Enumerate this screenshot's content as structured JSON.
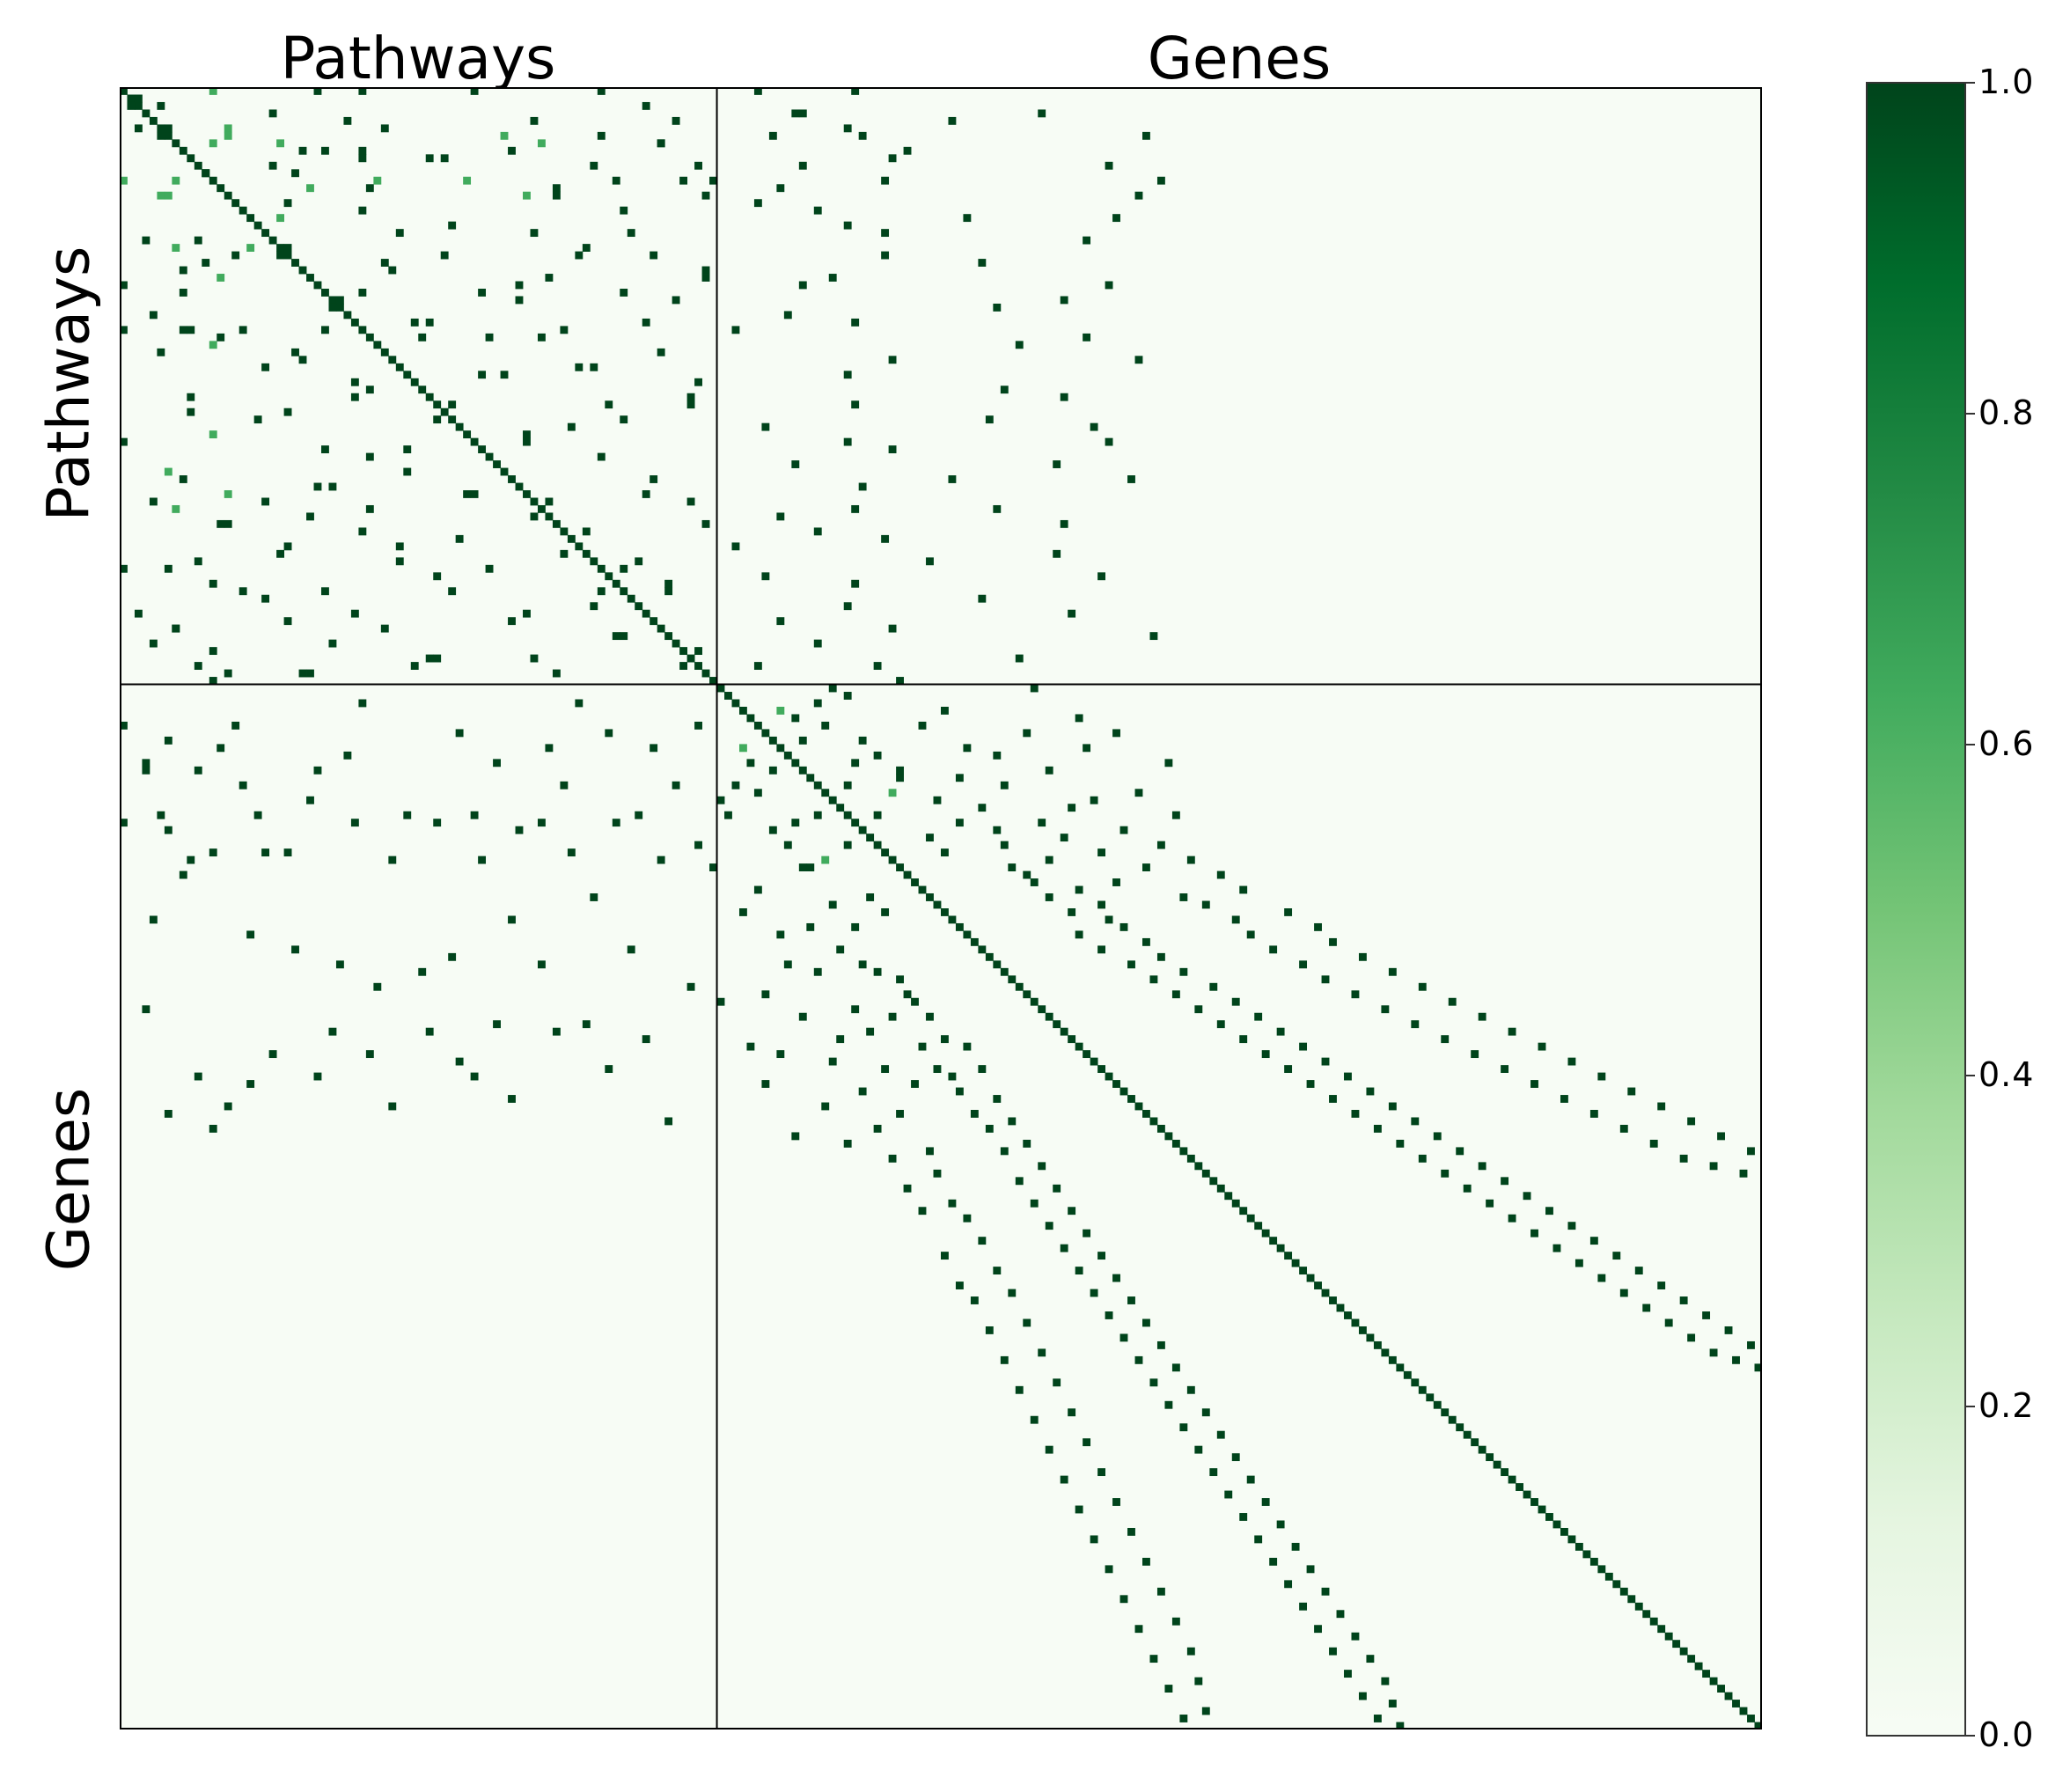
{
  "titles": {
    "pathways": "Pathways",
    "genes": "Genes"
  },
  "row_labels": {
    "pathways": "Pathways",
    "genes": "Genes"
  },
  "colorbar": {
    "ticks": [
      "1.0",
      "0.8",
      "0.6",
      "0.4",
      "0.2",
      "0.0"
    ],
    "colors": [
      "#f7fcf5",
      "#e5f5e0",
      "#c7e9c0",
      "#a1d99b",
      "#74c476",
      "#41ab5d",
      "#238b45",
      "#006d2c",
      "#00441b"
    ]
  },
  "chart_data": {
    "type": "heatmap",
    "description_of_axes": "symmetric adjacency matrix over pathways followed by genes",
    "block_labels": [
      "Pathways",
      "Genes"
    ],
    "n_pathways": 80,
    "n_genes": 140,
    "value_range": [
      0.0,
      1.0
    ],
    "colormap": "Greens",
    "diagonal_value": 1.0,
    "background_value": 0.0,
    "entries": [
      [
        0,
        12,
        0.6
      ],
      [
        0,
        26,
        1.0
      ],
      [
        0,
        32,
        1.0
      ],
      [
        0,
        47,
        1.0
      ],
      [
        0,
        64,
        1.0
      ],
      [
        0,
        85,
        1.0
      ],
      [
        0,
        98,
        1.0
      ],
      [
        1,
        2,
        1.0
      ],
      [
        2,
        5,
        1.0
      ],
      [
        2,
        70,
        1.0
      ],
      [
        3,
        90,
        1.0
      ],
      [
        3,
        91,
        1.0
      ],
      [
        3,
        123,
        1.0
      ],
      [
        4,
        74,
        1.0
      ],
      [
        4,
        111,
        1.0
      ],
      [
        5,
        6,
        1.0
      ],
      [
        5,
        14,
        0.6
      ],
      [
        5,
        35,
        1.0
      ],
      [
        5,
        97,
        1.0
      ],
      [
        6,
        87,
        1.0
      ],
      [
        6,
        99,
        1.0
      ],
      [
        6,
        137,
        1.0
      ],
      [
        7,
        12,
        0.6
      ],
      [
        7,
        21,
        0.6
      ],
      [
        7,
        56,
        0.6
      ],
      [
        7,
        72,
        1.0
      ],
      [
        8,
        24,
        1.0
      ],
      [
        8,
        27,
        1.0
      ],
      [
        8,
        52,
        1.0
      ],
      [
        8,
        105,
        1.0
      ],
      [
        9,
        32,
        1.0
      ],
      [
        9,
        41,
        1.0
      ],
      [
        9,
        103,
        1.0
      ],
      [
        10,
        63,
        1.0
      ],
      [
        10,
        77,
        1.0
      ],
      [
        10,
        91,
        1.0
      ],
      [
        10,
        132,
        1.0
      ],
      [
        11,
        11,
        1.0
      ],
      [
        11,
        23,
        1.0
      ],
      [
        12,
        102,
        1.0
      ],
      [
        12,
        139,
        1.0
      ],
      [
        13,
        33,
        1.0
      ],
      [
        13,
        58,
        1.0
      ],
      [
        13,
        88,
        1.0
      ],
      [
        14,
        6,
        0.6
      ],
      [
        14,
        54,
        0.6
      ],
      [
        14,
        78,
        1.0
      ],
      [
        14,
        136,
        1.0
      ],
      [
        15,
        22,
        1.0
      ],
      [
        15,
        85,
        1.0
      ],
      [
        16,
        32,
        1.0
      ],
      [
        16,
        67,
        1.0
      ],
      [
        16,
        93,
        1.0
      ],
      [
        17,
        113,
        1.0
      ],
      [
        17,
        133,
        1.0
      ],
      [
        18,
        44,
        1.0
      ],
      [
        18,
        97,
        1.0
      ],
      [
        19,
        55,
        1.0
      ],
      [
        19,
        102,
        1.0
      ],
      [
        20,
        3,
        1.0
      ],
      [
        20,
        10,
        1.0
      ],
      [
        20,
        129,
        1.0
      ],
      [
        21,
        17,
        0.6
      ],
      [
        21,
        22,
        1.0
      ],
      [
        21,
        62,
        1.0
      ],
      [
        22,
        71,
        1.0
      ],
      [
        22,
        102,
        1.0
      ],
      [
        23,
        35,
        1.0
      ],
      [
        23,
        115,
        1.0
      ],
      [
        24,
        36,
        1.0
      ],
      [
        24,
        78,
        1.0
      ],
      [
        25,
        13,
        0.6
      ],
      [
        25,
        57,
        1.0
      ],
      [
        25,
        95,
        1.0
      ],
      [
        26,
        91,
        1.0
      ],
      [
        26,
        132,
        1.0
      ],
      [
        27,
        32,
        1.0
      ],
      [
        27,
        67,
        1.0
      ],
      [
        28,
        53,
        1.0
      ],
      [
        28,
        126,
        1.0
      ],
      [
        29,
        28,
        1.0
      ],
      [
        29,
        117,
        1.0
      ],
      [
        30,
        4,
        1.0
      ],
      [
        30,
        89,
        1.0
      ],
      [
        31,
        41,
        1.0
      ],
      [
        31,
        98,
        1.0
      ],
      [
        32,
        8,
        1.0
      ],
      [
        32,
        82,
        1.0
      ],
      [
        33,
        56,
        1.0
      ],
      [
        33,
        129,
        1.0
      ],
      [
        34,
        12,
        0.6
      ],
      [
        34,
        120,
        1.0
      ],
      [
        35,
        72,
        1.0
      ],
      [
        36,
        103,
        1.0
      ],
      [
        36,
        136,
        1.0
      ],
      [
        37,
        19,
        1.0
      ],
      [
        37,
        61,
        1.0
      ],
      [
        38,
        48,
        1.0
      ],
      [
        38,
        97,
        1.0
      ],
      [
        39,
        31,
        1.0
      ],
      [
        39,
        77,
        1.0
      ],
      [
        40,
        33,
        1.0
      ],
      [
        40,
        118,
        1.0
      ],
      [
        41,
        76,
        1.0
      ],
      [
        41,
        126,
        1.0
      ],
      [
        42,
        65,
        1.0
      ],
      [
        42,
        98,
        1.0
      ],
      [
        43,
        9,
        1.0
      ],
      [
        43,
        22,
        1.0
      ],
      [
        44,
        42,
        1.0
      ],
      [
        44,
        116,
        1.0
      ],
      [
        45,
        86,
        1.0
      ],
      [
        45,
        130,
        1.0
      ],
      [
        46,
        12,
        0.6
      ],
      [
        46,
        54,
        1.0
      ],
      [
        47,
        97,
        1.0
      ],
      [
        47,
        132,
        1.0
      ],
      [
        48,
        27,
        1.0
      ],
      [
        48,
        103,
        1.0
      ],
      [
        49,
        33,
        1.0
      ],
      [
        49,
        64,
        1.0
      ],
      [
        50,
        90,
        1.0
      ],
      [
        50,
        125,
        1.0
      ],
      [
        51,
        6,
        0.6
      ],
      [
        51,
        38,
        1.0
      ],
      [
        52,
        111,
        1.0
      ],
      [
        52,
        135,
        1.0
      ],
      [
        53,
        26,
        1.0
      ],
      [
        53,
        99,
        1.0
      ],
      [
        54,
        47,
        1.0
      ],
      [
        54,
        70,
        1.0
      ],
      [
        55,
        4,
        1.0
      ],
      [
        55,
        76,
        1.0
      ],
      [
        56,
        98,
        1.0
      ],
      [
        56,
        117,
        1.0
      ],
      [
        57,
        55,
        1.0
      ],
      [
        57,
        88,
        1.0
      ],
      [
        58,
        14,
        1.0
      ],
      [
        58,
        126,
        1.0
      ],
      [
        59,
        32,
        1.0
      ],
      [
        59,
        93,
        1.0
      ],
      [
        60,
        45,
        1.0
      ],
      [
        60,
        102,
        1.0
      ],
      [
        61,
        22,
        1.0
      ],
      [
        61,
        82,
        1.0
      ],
      [
        62,
        59,
        1.0
      ],
      [
        62,
        125,
        1.0
      ],
      [
        63,
        37,
        1.0
      ],
      [
        63,
        108,
        1.0
      ],
      [
        64,
        6,
        1.0
      ],
      [
        64,
        67,
        1.0
      ],
      [
        65,
        86,
        1.0
      ],
      [
        65,
        131,
        1.0
      ],
      [
        66,
        12,
        1.0
      ],
      [
        66,
        98,
        1.0
      ],
      [
        67,
        44,
        1.0
      ],
      [
        67,
        73,
        1.0
      ],
      [
        68,
        19,
        1.0
      ],
      [
        68,
        115,
        1.0
      ],
      [
        69,
        63,
        1.0
      ],
      [
        69,
        97,
        1.0
      ],
      [
        70,
        31,
        1.0
      ],
      [
        70,
        127,
        1.0
      ],
      [
        71,
        52,
        1.0
      ],
      [
        71,
        88,
        1.0
      ],
      [
        72,
        7,
        1.0
      ],
      [
        72,
        103,
        1.0
      ],
      [
        73,
        66,
        1.0
      ],
      [
        73,
        138,
        1.0
      ],
      [
        74,
        28,
        1.0
      ],
      [
        74,
        93,
        1.0
      ],
      [
        75,
        12,
        1.0
      ],
      [
        75,
        77,
        1.0
      ],
      [
        76,
        42,
        1.0
      ],
      [
        76,
        120,
        1.0
      ],
      [
        77,
        85,
        1.0
      ],
      [
        77,
        101,
        1.0
      ],
      [
        78,
        25,
        1.0
      ],
      [
        78,
        58,
        1.0
      ],
      [
        79,
        12,
        1.0
      ],
      [
        79,
        104,
        1.0
      ],
      [
        80,
        95,
        1.0
      ],
      [
        80,
        122,
        1.0
      ],
      [
        81,
        97,
        1.0
      ],
      [
        82,
        93,
        1.0
      ],
      [
        83,
        88,
        0.6
      ],
      [
        83,
        110,
        1.0
      ],
      [
        84,
        90,
        1.0
      ],
      [
        84,
        128,
        1.0
      ],
      [
        85,
        94,
        1.0
      ],
      [
        85,
        107,
        1.0
      ],
      [
        86,
        121,
        1.0
      ],
      [
        86,
        133,
        1.0
      ],
      [
        87,
        91,
        1.0
      ],
      [
        87,
        99,
        1.0
      ],
      [
        88,
        113,
        1.0
      ],
      [
        88,
        129,
        1.0
      ],
      [
        89,
        101,
        1.0
      ],
      [
        89,
        117,
        1.0
      ],
      [
        90,
        98,
        1.0
      ],
      [
        90,
        140,
        1.0
      ],
      [
        91,
        104,
        1.0
      ],
      [
        91,
        124,
        1.0
      ],
      [
        92,
        104,
        1.0
      ],
      [
        92,
        112,
        1.0
      ],
      [
        93,
        97,
        1.0
      ],
      [
        93,
        118,
        1.0
      ],
      [
        94,
        103,
        0.6
      ],
      [
        94,
        136,
        1.0
      ],
      [
        95,
        109,
        1.0
      ],
      [
        95,
        130,
        1.0
      ],
      [
        96,
        115,
        1.0
      ],
      [
        96,
        127,
        1.0
      ],
      [
        97,
        101,
        1.0
      ],
      [
        97,
        141,
        1.0
      ],
      [
        98,
        112,
        1.0
      ],
      [
        98,
        123,
        1.0
      ],
      [
        99,
        117,
        1.0
      ],
      [
        99,
        134,
        1.0
      ],
      [
        100,
        108,
        1.0
      ],
      [
        100,
        126,
        1.0
      ],
      [
        101,
        118,
        1.0
      ],
      [
        101,
        139,
        1.0
      ],
      [
        102,
        110,
        1.0
      ],
      [
        102,
        131,
        1.0
      ],
      [
        103,
        124,
        1.0
      ],
      [
        103,
        143,
        1.0
      ],
      [
        104,
        119,
        1.0
      ],
      [
        104,
        137,
        1.0
      ],
      [
        105,
        121,
        1.0
      ],
      [
        105,
        147,
        1.0
      ],
      [
        106,
        122,
        1.0
      ],
      [
        106,
        133,
        1.0
      ],
      [
        107,
        128,
        1.0
      ],
      [
        107,
        150,
        1.0
      ],
      [
        108,
        124,
        1.0
      ],
      [
        108,
        142,
        1.0
      ],
      [
        109,
        131,
        1.0
      ],
      [
        109,
        145,
        1.0
      ],
      [
        110,
        127,
        1.0
      ],
      [
        110,
        156,
        1.0
      ],
      [
        111,
        132,
        1.0
      ],
      [
        111,
        149,
        1.0
      ],
      [
        112,
        134,
        1.0
      ],
      [
        112,
        160,
        1.0
      ],
      [
        113,
        128,
        1.0
      ],
      [
        113,
        151,
        1.0
      ],
      [
        114,
        137,
        1.0
      ],
      [
        114,
        162,
        1.0
      ],
      [
        115,
        131,
        1.0
      ],
      [
        115,
        154,
        1.0
      ],
      [
        116,
        139,
        1.0
      ],
      [
        116,
        166,
        1.0
      ],
      [
        117,
        135,
        1.0
      ],
      [
        117,
        158,
        1.0
      ],
      [
        118,
        142,
        1.0
      ],
      [
        118,
        170,
        1.0
      ],
      [
        119,
        138,
        1.0
      ],
      [
        119,
        161,
        1.0
      ],
      [
        120,
        146,
        1.0
      ],
      [
        120,
        174,
        1.0
      ],
      [
        121,
        141,
        1.0
      ],
      [
        121,
        165,
        1.0
      ],
      [
        122,
        149,
        1.0
      ],
      [
        122,
        178,
        1.0
      ],
      [
        123,
        144,
        1.0
      ],
      [
        123,
        169,
        1.0
      ],
      [
        124,
        152,
        1.0
      ],
      [
        124,
        182,
        1.0
      ],
      [
        125,
        147,
        1.0
      ],
      [
        125,
        173,
        1.0
      ],
      [
        126,
        155,
        1.0
      ],
      [
        126,
        186,
        1.0
      ],
      [
        127,
        150,
        1.0
      ],
      [
        127,
        177,
        1.0
      ],
      [
        128,
        158,
        1.0
      ],
      [
        128,
        190,
        1.0
      ],
      [
        129,
        153,
        1.0
      ],
      [
        129,
        181,
        1.0
      ],
      [
        130,
        161,
        1.0
      ],
      [
        130,
        194,
        1.0
      ],
      [
        131,
        156,
        1.0
      ],
      [
        131,
        185,
        1.0
      ],
      [
        132,
        164,
        1.0
      ],
      [
        132,
        198,
        1.0
      ],
      [
        133,
        159,
        1.0
      ],
      [
        133,
        189,
        1.0
      ],
      [
        134,
        167,
        1.0
      ],
      [
        134,
        202,
        1.0
      ],
      [
        135,
        162,
        1.0
      ],
      [
        135,
        193,
        1.0
      ],
      [
        136,
        170,
        1.0
      ],
      [
        136,
        206,
        1.0
      ],
      [
        137,
        165,
        1.0
      ],
      [
        137,
        197,
        1.0
      ],
      [
        138,
        173,
        1.0
      ],
      [
        138,
        210,
        1.0
      ],
      [
        139,
        168,
        1.0
      ],
      [
        139,
        201,
        1.0
      ],
      [
        140,
        176,
        1.0
      ],
      [
        140,
        214,
        1.0
      ],
      [
        141,
        171,
        1.0
      ],
      [
        141,
        205,
        1.0
      ],
      [
        142,
        179,
        1.0
      ],
      [
        142,
        218,
        1.0
      ],
      [
        143,
        174,
        1.0
      ],
      [
        143,
        209,
        1.0
      ],
      [
        144,
        182,
        1.0
      ],
      [
        144,
        213,
        1.0
      ],
      [
        145,
        177,
        1.0
      ],
      [
        145,
        217,
        1.0
      ],
      [
        146,
        185,
        1.0
      ],
      [
        147,
        180,
        1.0
      ],
      [
        148,
        188,
        1.0
      ],
      [
        149,
        183,
        1.0
      ],
      [
        150,
        191,
        1.0
      ],
      [
        151,
        186,
        1.0
      ],
      [
        152,
        194,
        1.0
      ],
      [
        153,
        189,
        1.0
      ],
      [
        154,
        197,
        1.0
      ],
      [
        155,
        192,
        1.0
      ],
      [
        156,
        200,
        1.0
      ],
      [
        157,
        195,
        1.0
      ],
      [
        158,
        203,
        1.0
      ],
      [
        159,
        198,
        1.0
      ],
      [
        160,
        206,
        1.0
      ],
      [
        161,
        201,
        1.0
      ],
      [
        162,
        209,
        1.0
      ],
      [
        163,
        204,
        1.0
      ],
      [
        164,
        212,
        1.0
      ],
      [
        165,
        207,
        1.0
      ],
      [
        166,
        215,
        1.0
      ],
      [
        167,
        210,
        1.0
      ],
      [
        168,
        218,
        1.0
      ],
      [
        169,
        213,
        1.0
      ],
      [
        170,
        216,
        1.0
      ],
      [
        171,
        219,
        1.0
      ]
    ]
  }
}
